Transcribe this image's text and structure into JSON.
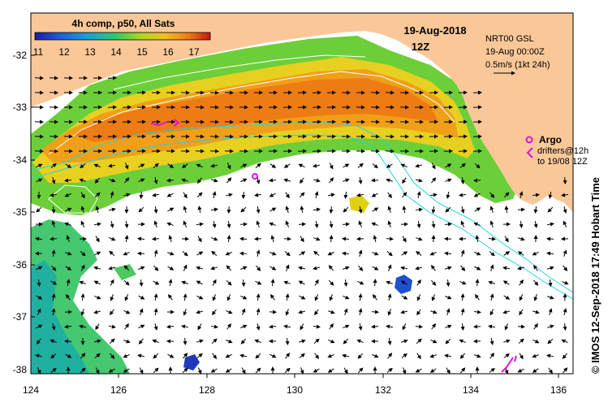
{
  "title": "4h comp, p50, All Sats",
  "colorbar": {
    "ticks": [
      "11",
      "12",
      "13",
      "14",
      "15",
      "16",
      "17"
    ],
    "colors": [
      "#1a1aa8",
      "#1f5cd6",
      "#18a0d8",
      "#2ec86a",
      "#a8d820",
      "#f2c020",
      "#f07a10",
      "#c01a10"
    ]
  },
  "date_label": "19-Aug-2018",
  "time_label": "12Z",
  "current_info": {
    "line1": "NRT00 GSL",
    "line2": "19-Aug 00:00Z",
    "line3": "0.5m/s (1kt 24h)"
  },
  "argo": {
    "label": "Argo",
    "drifters_line": "drifters@12h",
    "to_line": "to 19/08 12Z"
  },
  "credit": "© IMOS 12-Sep-2018 17:49 Hobart Time",
  "axes": {
    "x_ticks": [
      "124",
      "126",
      "128",
      "130",
      "132",
      "134",
      "136"
    ],
    "y_ticks": [
      "-32",
      "-33",
      "-34",
      "-35",
      "-36",
      "-37",
      "-38"
    ]
  },
  "colors": {
    "land": "#fac898",
    "frame": "#000000",
    "contour_white": "#ffffff",
    "contour_cyan": "#22d4e0",
    "argo_magenta": "#e010e0"
  }
}
